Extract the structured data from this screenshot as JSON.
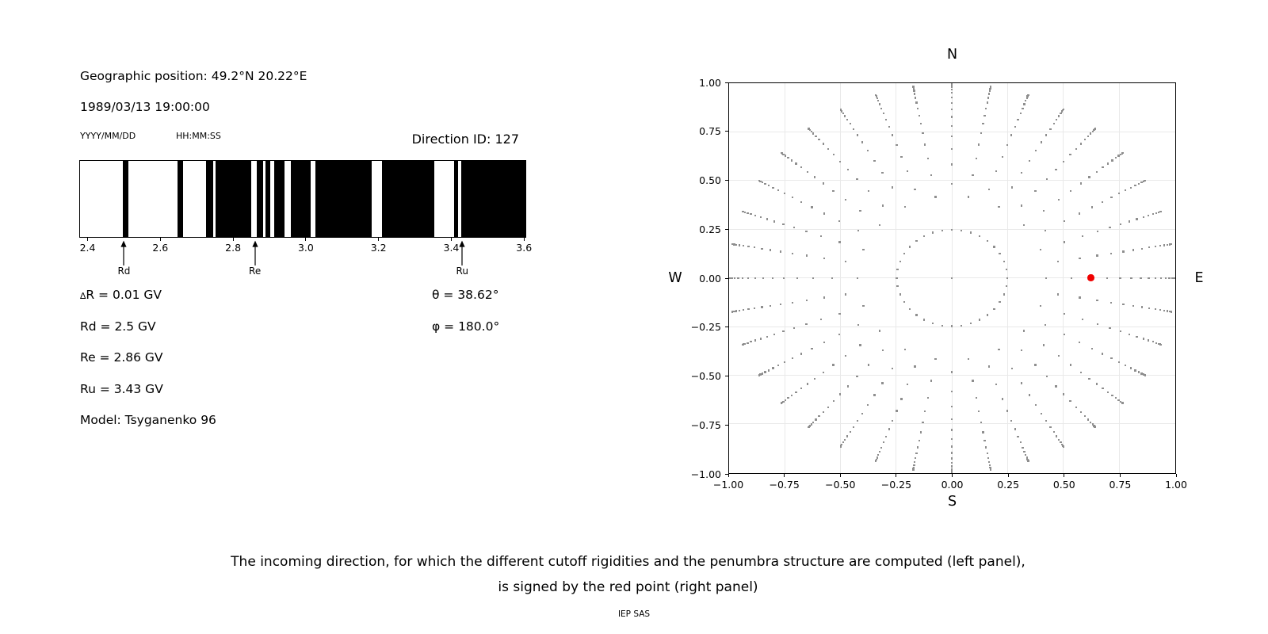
{
  "left_panel": {
    "geographic_position": "Geographic position: 49.2°N 20.22°E",
    "datetime": "1989/03/13 19:00:00",
    "date_format": "YYYY/MM/DD",
    "time_format": "HH:MM:SS",
    "direction_id": "Direction ID: 127",
    "delta_symbol": "∆",
    "delta_rest": "R = 0.01 GV",
    "rd": "Rd = 2.5 GV",
    "re": "Re = 2.86 GV",
    "ru": "Ru = 3.43 GV",
    "model": "Model: Tsyganenko 96",
    "theta": "θ = 38.62°",
    "phi": "φ = 180.0°"
  },
  "chart_data": [
    {
      "type": "bar",
      "name": "penumbra-structure",
      "description": "Cosmic-ray cutoff penumbra: black bands = allowed rigidities, white gaps = forbidden",
      "x_unit": "GV",
      "xlim": [
        2.377,
        3.606
      ],
      "x_ticks": [
        2.4,
        2.6,
        2.8,
        3.0,
        3.2,
        3.4,
        3.6
      ],
      "x_tick_labels": [
        "2.4",
        "2.6",
        "2.8",
        "3.0",
        "3.2",
        "3.4",
        "3.6"
      ],
      "delta_R_GV": 0.01,
      "cutoffs_GV": {
        "Rd": 2.5,
        "Re": 2.86,
        "Ru": 3.43
      },
      "allowed_bands_GV": [
        [
          2.497,
          2.512
        ],
        [
          2.648,
          2.663
        ],
        [
          2.726,
          2.745
        ],
        [
          2.752,
          2.851
        ],
        [
          2.866,
          2.882
        ],
        [
          2.889,
          2.903
        ],
        [
          2.914,
          2.942
        ],
        [
          2.958,
          3.013
        ],
        [
          3.027,
          3.182
        ],
        [
          3.209,
          3.353
        ],
        [
          3.408,
          3.419
        ],
        [
          3.428,
          3.606
        ]
      ],
      "band_color": "#000000",
      "annotations": [
        {
          "label": "Rd",
          "x": 2.5
        },
        {
          "label": "Re",
          "x": 2.86
        },
        {
          "label": "Ru",
          "x": 3.43
        }
      ]
    },
    {
      "type": "scatter",
      "name": "arrival-direction-map",
      "compass": {
        "top": "N",
        "bottom": "S",
        "left": "W",
        "right": "E"
      },
      "xlim": [
        -1,
        1
      ],
      "ylim": [
        -1,
        1
      ],
      "x_ticks": [
        -1,
        -0.75,
        -0.5,
        -0.25,
        0,
        0.25,
        0.5,
        0.75,
        1
      ],
      "y_ticks": [
        1,
        0.75,
        0.5,
        0.25,
        0,
        -0.25,
        -0.5,
        -0.75,
        -1
      ],
      "x_tick_labels": [
        "−1.00",
        "−0.75",
        "−0.50",
        "−0.25",
        "0.00",
        "0.25",
        "0.50",
        "0.75",
        "1.00"
      ],
      "y_tick_labels": [
        "1.00",
        "0.75",
        "0.50",
        "0.25",
        "0.00",
        "−0.25",
        "−0.50",
        "−0.75",
        "−1.00"
      ],
      "grid": true,
      "grid_color": "#e9e9e9",
      "dot_color": "#8e8e8e",
      "direction_grid": {
        "radial_rule": "r = sin(acos(1 - k/32))",
        "azimuth_step_deg": 10,
        "center_dot": true,
        "inner_ring_k": 1,
        "inner_ring_azimuth_step_deg": 10,
        "spoke_k_even_azimuths": [
          3,
          5,
          7,
          9,
          11,
          13,
          15,
          17,
          19,
          21,
          23,
          25,
          27,
          29,
          31
        ],
        "spoke_k_odd_azimuths": [
          4,
          6,
          8,
          10,
          12,
          14,
          16,
          18,
          20,
          22,
          24,
          26,
          28,
          30,
          32
        ]
      },
      "red_point": {
        "x": 0.624,
        "y": 0.0,
        "theta_deg": 38.62,
        "phi_deg": 180.0,
        "color": "#f00000"
      }
    }
  ],
  "caption": {
    "line1": "The incoming direction, for which the different cutoff rigidities and the penumbra structure are computed (left panel),",
    "line2": "is signed by the red point (right panel)",
    "credit": "IEP SAS"
  }
}
